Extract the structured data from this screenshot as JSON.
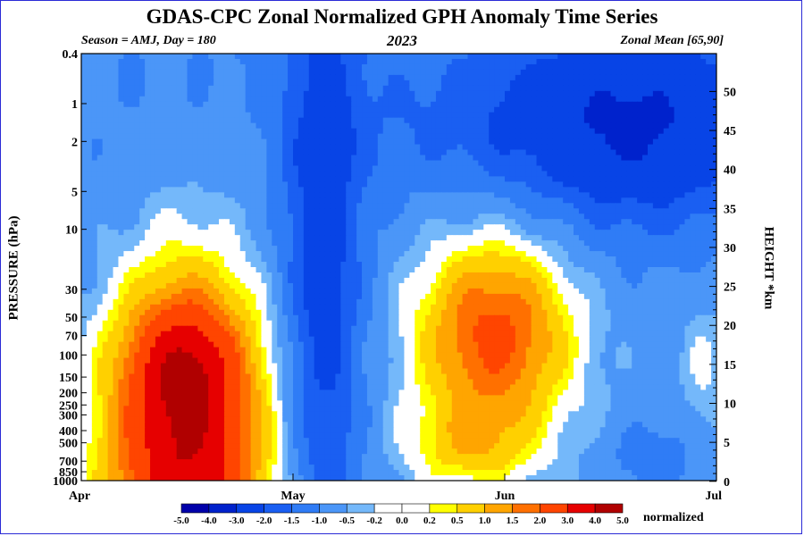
{
  "header": {
    "title": "GDAS-CPC Zonal Normalized GPH Anomaly Time Series",
    "season": "Season = AMJ, Day = 180",
    "year": "2023",
    "zonal_mean": "Zonal Mean [65,90]"
  },
  "colorbar": {
    "unit_label": "normalized",
    "levels": [
      "-5.0",
      "-4.0",
      "-3.0",
      "-2.0",
      "-1.5",
      "-1.0",
      "-0.5",
      "-0.2",
      "0.0",
      "0.2",
      "0.5",
      "1.0",
      "1.5",
      "2.0",
      "3.0",
      "4.0",
      "5.0"
    ],
    "colors": [
      "#0000aa",
      "#0022cc",
      "#0844e6",
      "#1a5ff2",
      "#2f7cf6",
      "#4b96f8",
      "#74b8fa",
      "#ffffff",
      "#ffffff",
      "#ffff00",
      "#ffd000",
      "#ffa500",
      "#ff7000",
      "#ff4500",
      "#e60000",
      "#b00000"
    ]
  },
  "chart_data": {
    "type": "heatmap",
    "title": "GDAS-CPC Zonal Normalized GPH Anomaly Time Series",
    "xlabel": "",
    "ylabel": "PRESSURE (hPa)",
    "y2label": "HEIGHT *km",
    "x_ticks": [
      "Apr",
      "May",
      "Jun",
      "Jul"
    ],
    "x_range": [
      "2023-04-01",
      "2023-07-01"
    ],
    "y_scale": "log",
    "y_range_hpa": [
      1000,
      0.4
    ],
    "y_ticks": [
      "0.4",
      "1",
      "2",
      "5",
      "10",
      "30",
      "50",
      "70",
      "100",
      "150",
      "200",
      "250",
      "300",
      "400",
      "500",
      "700",
      "850",
      "1000"
    ],
    "y2_ticks": [
      "0",
      "5",
      "10",
      "15",
      "20",
      "25",
      "30",
      "35",
      "40",
      "45",
      "50"
    ],
    "y2_range_km": [
      0,
      50
    ],
    "features": [
      {
        "region": "Apr 10 - Apr 28, 1000-70 hPa",
        "peak": 3.0
      },
      {
        "region": "May 5 - May 22, 0.4-1000 hPa",
        "value": -1.0
      },
      {
        "region": "Jun 1 - Jun 12, 30-200 hPa",
        "peak": 2.0
      },
      {
        "region": "Jun 5 - Jul 1, 0.4-5 hPa",
        "value": -2.0
      }
    ]
  }
}
